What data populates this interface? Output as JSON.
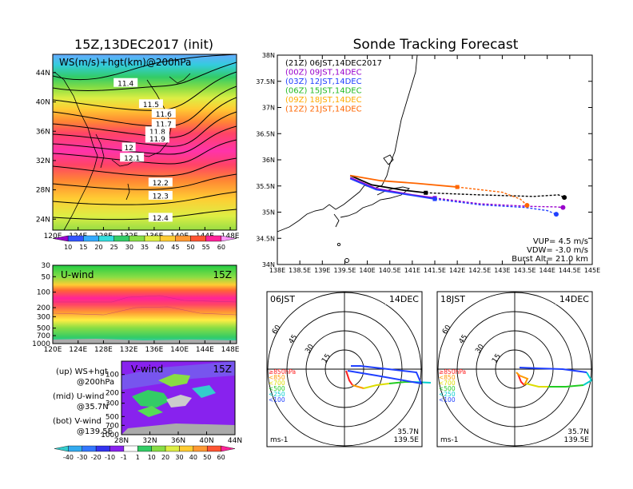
{
  "panels": {
    "init_title": "15Z,13DEC2017 (init)",
    "main_title": "Sonde Tracking Forecast",
    "ws_label": "WS(m/s)+hgt(km)@200hPa",
    "u_label": "U-wind",
    "u_time": "15Z",
    "v_label": "V-wind",
    "v_time": "15Z",
    "legend_up": "(up) WS+hgt",
    "legend_up2": "@200hPa",
    "legend_mid": "(mid) U-wind",
    "legend_mid2": "@35.7N",
    "legend_bot": "(bot) V-wind",
    "legend_bot2": "@139.5E"
  },
  "colors": {
    "purple": "#8a2be2",
    "magenta": "#ff00cc",
    "red": "#ff2020",
    "orange": "#ff9900",
    "yellow": "#ffff00",
    "green": "#33cc33",
    "lightgreen": "#99ff66",
    "cyan": "#00e0e0",
    "blue": "#2050ff"
  },
  "chart_data": [
    {
      "type": "heatmap",
      "title": "15Z,13DEC2017 (init)",
      "label": "WS(m/s)+hgt(km)@200hPa",
      "x_ticks": [
        "120E",
        "124E",
        "128E",
        "132E",
        "136E",
        "140E",
        "144E",
        "148E"
      ],
      "y_ticks": [
        "24N",
        "28N",
        "32N",
        "36N",
        "40N",
        "44N"
      ],
      "contour_labels": [
        {
          "text": "11.4",
          "lon": 131.5,
          "lat": 42.6
        },
        {
          "text": "11.5",
          "lon": 135.5,
          "lat": 39.7
        },
        {
          "text": "11.6",
          "lon": 137.5,
          "lat": 38.4
        },
        {
          "text": "11.7",
          "lon": 137.5,
          "lat": 37.0
        },
        {
          "text": "11.8",
          "lon": 136.5,
          "lat": 36.0
        },
        {
          "text": "11.9",
          "lon": 136.5,
          "lat": 35.0
        },
        {
          "text": "12",
          "lon": 132.0,
          "lat": 33.8
        },
        {
          "text": "12.1",
          "lon": 132.5,
          "lat": 32.4
        },
        {
          "text": "12.2",
          "lon": 137.0,
          "lat": 29.0
        },
        {
          "text": "12.3",
          "lon": 137.0,
          "lat": 27.2
        },
        {
          "text": "12.4",
          "lon": 137.0,
          "lat": 24.2
        }
      ],
      "colorbar": [
        "10",
        "15",
        "20",
        "25",
        "30",
        "35",
        "40",
        "45",
        "50",
        "55",
        "60"
      ]
    },
    {
      "type": "heatmap",
      "label": "U-wind",
      "time": "15Z",
      "x_ticks": [
        "120E",
        "124E",
        "128E",
        "132E",
        "136E",
        "140E",
        "144E",
        "148E"
      ],
      "y_ticks": [
        "30",
        "50",
        "100",
        "200",
        "300",
        "500",
        "700",
        "1000"
      ]
    },
    {
      "type": "heatmap",
      "label": "V-wind",
      "time": "15Z",
      "x_ticks": [
        "28N",
        "32N",
        "36N",
        "40N",
        "44N"
      ],
      "y_ticks": [
        "100",
        "200",
        "300",
        "500",
        "700",
        "1000"
      ],
      "colorbar": [
        "-40",
        "-30",
        "-20",
        "-10",
        "-1",
        "1",
        "10",
        "20",
        "30",
        "40",
        "50",
        "60"
      ]
    },
    {
      "type": "line",
      "title": "Sonde Tracking Forecast",
      "x_ticks": [
        "138E",
        "138.5E",
        "139E",
        "139.5E",
        "140E",
        "140.5E",
        "141E",
        "141.5E",
        "142E",
        "142.5E",
        "143E",
        "143.5E",
        "144E",
        "144.5E",
        "145E"
      ],
      "y_ticks": [
        "34N",
        "34.5N",
        "35N",
        "35.5N",
        "36N",
        "36.5N",
        "37N",
        "37.5N",
        "38N"
      ],
      "xlim": [
        138,
        145
      ],
      "ylim": [
        34,
        38
      ],
      "launches": [
        {
          "name": "(21Z)  06JST,14DEC2017",
          "color": "#000000"
        },
        {
          "name": "(00Z)  09JST,14DEC",
          "color": "#9900cc"
        },
        {
          "name": "(03Z)  12JST,14DEC",
          "color": "#2040ff"
        },
        {
          "name": "(06Z)  15JST,14DEC",
          "color": "#22bb22"
        },
        {
          "name": "(09Z)  18JST,14DEC",
          "color": "#ffaa00"
        },
        {
          "name": "(12Z)  21JST,14DEC",
          "color": "#ff6600"
        }
      ],
      "series": [
        {
          "color": "#000000",
          "points": [
            [
              139.62,
              35.7
            ],
            [
              140.1,
              35.52
            ],
            [
              140.8,
              35.42
            ],
            [
              141.3,
              35.37
            ],
            [
              142.5,
              35.33
            ],
            [
              143.7,
              35.3
            ],
            [
              144.25,
              35.33
            ],
            [
              144.38,
              35.28
            ]
          ]
        },
        {
          "color": "#9900cc",
          "points": [
            [
              139.62,
              35.66
            ],
            [
              140.2,
              35.45
            ],
            [
              141.0,
              35.33
            ],
            [
              141.5,
              35.27
            ],
            [
              142.5,
              35.16
            ],
            [
              143.6,
              35.11
            ],
            [
              144.2,
              35.1
            ],
            [
              144.35,
              35.09
            ]
          ]
        },
        {
          "color": "#2040ff",
          "points": [
            [
              139.62,
              35.64
            ],
            [
              140.2,
              35.43
            ],
            [
              141.0,
              35.32
            ],
            [
              141.5,
              35.25
            ],
            [
              142.5,
              35.14
            ],
            [
              143.5,
              35.09
            ],
            [
              144.0,
              35.03
            ],
            [
              144.2,
              34.96
            ]
          ]
        },
        {
          "color": "#ff6600",
          "points": [
            [
              139.62,
              35.7
            ],
            [
              140.3,
              35.6
            ],
            [
              141.1,
              35.55
            ],
            [
              142.0,
              35.48
            ],
            [
              143.0,
              35.38
            ],
            [
              143.4,
              35.25
            ],
            [
              143.55,
              35.13
            ]
          ]
        }
      ],
      "params": [
        "VUP= 4.5 m/s",
        "VDW= -3.0 m/s",
        "Burst Alt= 21.0 km"
      ]
    },
    {
      "type": "scatter",
      "label": "06JST",
      "date": "14DEC",
      "ring_labels": [
        "15",
        "30",
        "45",
        "60"
      ],
      "unit": "ms-1",
      "location": [
        "35.7N",
        "139.5E"
      ],
      "levels": [
        {
          "name": "≥850hPa",
          "color": "#ff2020"
        },
        {
          "name": "<850",
          "color": "#ff9900"
        },
        {
          "name": "<700",
          "color": "#dddd00"
        },
        {
          "name": "<500",
          "color": "#22cc22"
        },
        {
          "name": "<250",
          "color": "#00cccc"
        },
        {
          "name": "<100",
          "color": "#2040ff"
        }
      ]
    },
    {
      "type": "scatter",
      "label": "18JST",
      "date": "14DEC",
      "ring_labels": [
        "15",
        "30",
        "45",
        "60"
      ],
      "unit": "ms-1",
      "location": [
        "35.7N",
        "139.5E"
      ],
      "levels": [
        {
          "name": "≥850hPa",
          "color": "#ff2020"
        },
        {
          "name": "<850",
          "color": "#ff9900"
        },
        {
          "name": "<700",
          "color": "#dddd00"
        },
        {
          "name": "<500",
          "color": "#22cc22"
        },
        {
          "name": "<250",
          "color": "#00cccc"
        },
        {
          "name": "<100",
          "color": "#2040ff"
        }
      ]
    }
  ]
}
